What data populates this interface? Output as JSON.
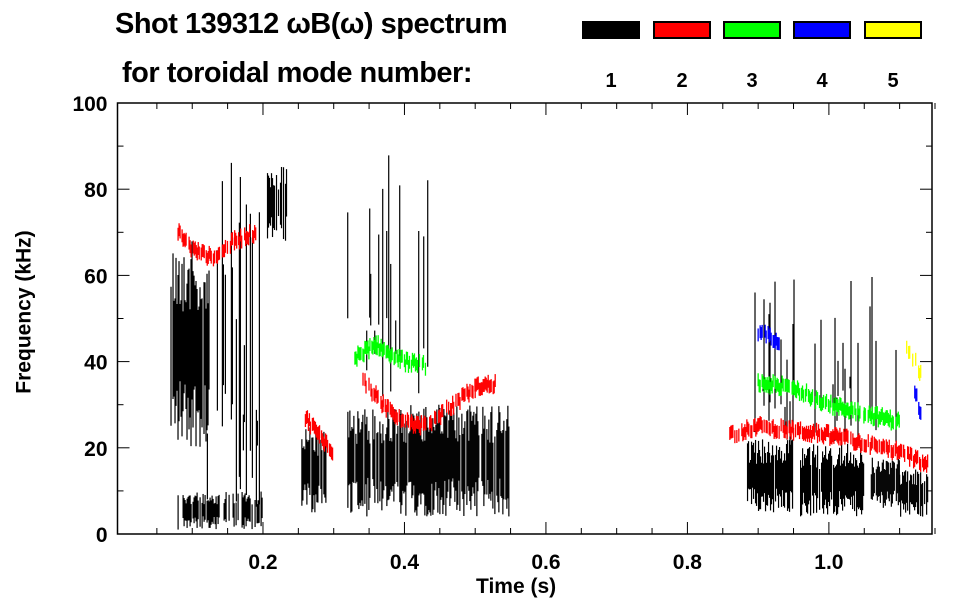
{
  "title_line1": "Shot 139312 ωB(ω) spectrum",
  "title_line2": "for toroidal mode number:",
  "legend": [
    {
      "label": "1",
      "color": "#000000"
    },
    {
      "label": "2",
      "color": "#ff0000"
    },
    {
      "label": "3",
      "color": "#00ff00"
    },
    {
      "label": "4",
      "color": "#0000ff"
    },
    {
      "label": "5",
      "color": "#ffff00"
    }
  ],
  "chart_data": {
    "type": "heatmap",
    "title": "Shot 139312 ωB(ω) spectrum for toroidal mode number",
    "xlabel": "Time (s)",
    "ylabel": "Frequency (kHz)",
    "xlim": [
      0,
      1.15
    ],
    "ylim": [
      0,
      100
    ],
    "xticks": [
      "0.2",
      "0.4",
      "0.6",
      "0.8",
      "1.0"
    ],
    "xtick_values": [
      0.2,
      0.4,
      0.6,
      0.8,
      1.0
    ],
    "yticks": [
      "0",
      "20",
      "40",
      "60",
      "80",
      "100"
    ],
    "ytick_values": [
      0,
      20,
      40,
      60,
      80,
      100
    ],
    "regions": [
      {
        "mode": 1,
        "t": [
          0.07,
          0.125
        ],
        "f": [
          20,
          68
        ],
        "density": 0.9
      },
      {
        "mode": 1,
        "t": [
          0.08,
          0.2
        ],
        "f": [
          1,
          10
        ],
        "density": 0.7
      },
      {
        "mode": 1,
        "t": [
          0.12,
          0.2
        ],
        "f": [
          5,
          90
        ],
        "density": 0.25
      },
      {
        "mode": 1,
        "t": [
          0.205,
          0.235
        ],
        "f": [
          68,
          86
        ],
        "density": 0.8
      },
      {
        "mode": 1,
        "t": [
          0.255,
          0.29
        ],
        "f": [
          5,
          25
        ],
        "density": 0.8
      },
      {
        "mode": 1,
        "t": [
          0.32,
          0.55
        ],
        "f": [
          4,
          30
        ],
        "density": 0.9
      },
      {
        "mode": 1,
        "t": [
          0.3,
          0.45
        ],
        "f": [
          30,
          92
        ],
        "density": 0.2
      },
      {
        "mode": 1,
        "t": [
          0.885,
          0.95
        ],
        "f": [
          5,
          22
        ],
        "density": 0.95
      },
      {
        "mode": 1,
        "t": [
          0.96,
          1.05
        ],
        "f": [
          4,
          21
        ],
        "density": 0.95
      },
      {
        "mode": 1,
        "t": [
          1.06,
          1.1
        ],
        "f": [
          6,
          18
        ],
        "density": 0.9
      },
      {
        "mode": 1,
        "t": [
          1.1,
          1.14
        ],
        "f": [
          4,
          15
        ],
        "density": 0.8
      },
      {
        "mode": 1,
        "t": [
          0.88,
          1.1
        ],
        "f": [
          20,
          60
        ],
        "density": 0.15
      }
    ],
    "mode_tracks": [
      {
        "mode": 2,
        "points": [
          [
            0.08,
            70
          ],
          [
            0.1,
            66
          ],
          [
            0.13,
            64
          ],
          [
            0.16,
            68
          ],
          [
            0.19,
            70
          ]
        ]
      },
      {
        "mode": 2,
        "points": [
          [
            0.26,
            27
          ],
          [
            0.28,
            23
          ],
          [
            0.3,
            19
          ]
        ]
      },
      {
        "mode": 2,
        "points": [
          [
            0.34,
            36
          ],
          [
            0.37,
            30
          ],
          [
            0.4,
            26
          ],
          [
            0.43,
            25
          ],
          [
            0.47,
            30
          ],
          [
            0.5,
            34
          ],
          [
            0.53,
            35
          ]
        ]
      },
      {
        "mode": 2,
        "points": [
          [
            0.86,
            23
          ],
          [
            0.9,
            25
          ],
          [
            0.95,
            24
          ],
          [
            1.0,
            23
          ],
          [
            1.05,
            21
          ],
          [
            1.1,
            19
          ],
          [
            1.14,
            16
          ]
        ]
      },
      {
        "mode": 3,
        "points": [
          [
            0.33,
            41
          ],
          [
            0.36,
            44
          ],
          [
            0.4,
            40
          ],
          [
            0.43,
            39
          ]
        ]
      },
      {
        "mode": 3,
        "points": [
          [
            0.9,
            35
          ],
          [
            0.95,
            34
          ],
          [
            1.0,
            30
          ],
          [
            1.05,
            28
          ],
          [
            1.1,
            26
          ]
        ]
      },
      {
        "mode": 4,
        "points": [
          [
            0.9,
            47
          ],
          [
            0.93,
            45
          ]
        ]
      },
      {
        "mode": 4,
        "points": [
          [
            1.12,
            34
          ],
          [
            1.13,
            28
          ]
        ]
      },
      {
        "mode": 5,
        "points": [
          [
            1.11,
            44
          ],
          [
            1.13,
            37
          ]
        ]
      }
    ]
  }
}
